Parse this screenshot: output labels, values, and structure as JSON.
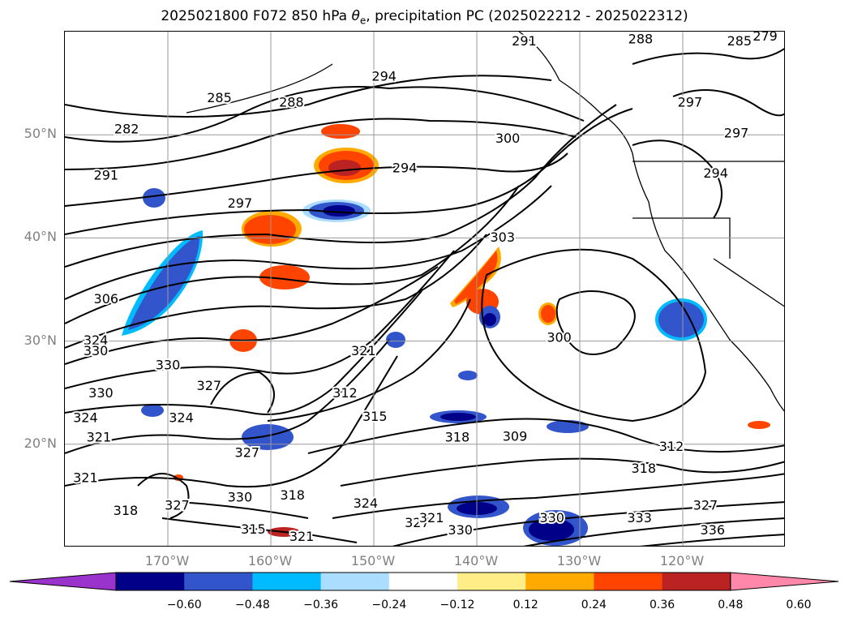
{
  "title": {
    "prefix": "2025021800 F072 850 hPa ",
    "theta": "θ",
    "theta_sub": "e",
    "suffix": ", precipitation PC (2025022212 - 2025022312)"
  },
  "axes": {
    "lat_labels": [
      "50°N",
      "40°N",
      "30°N",
      "20°N"
    ],
    "lon_labels": [
      "170°W",
      "160°W",
      "150°W",
      "140°W",
      "130°W",
      "120°W"
    ],
    "lat_values": [
      50,
      40,
      30,
      20
    ],
    "lon_values": [
      -170,
      -160,
      -150,
      -140,
      -130,
      -120
    ],
    "lon_range": [
      -180,
      -110
    ],
    "lat_range": [
      10,
      60
    ],
    "grid": true
  },
  "contour_labels": [
    {
      "text": "294",
      "lon": -149,
      "lat": 55.6
    },
    {
      "text": "288",
      "lon": -158,
      "lat": 53.1
    },
    {
      "text": "285",
      "lon": -165,
      "lat": 53.5
    },
    {
      "text": "282",
      "lon": -174,
      "lat": 50.5
    },
    {
      "text": "291",
      "lon": -176,
      "lat": 46.0
    },
    {
      "text": "297",
      "lon": -163,
      "lat": 43.3
    },
    {
      "text": "294",
      "lon": -147,
      "lat": 46.7
    },
    {
      "text": "300",
      "lon": -137,
      "lat": 49.6
    },
    {
      "text": "303",
      "lon": -137.5,
      "lat": 40.0
    },
    {
      "text": "300",
      "lon": -132,
      "lat": 30.3
    },
    {
      "text": "306",
      "lon": -176,
      "lat": 34.0
    },
    {
      "text": "324",
      "lon": -177,
      "lat": 30.0
    },
    {
      "text": "330",
      "lon": -177,
      "lat": 29.0
    },
    {
      "text": "330",
      "lon": -170,
      "lat": 27.6
    },
    {
      "text": "327",
      "lon": -166,
      "lat": 25.6
    },
    {
      "text": "330",
      "lon": -176.5,
      "lat": 24.9
    },
    {
      "text": "324",
      "lon": -178,
      "lat": 22.5
    },
    {
      "text": "324",
      "lon": -168.7,
      "lat": 22.5
    },
    {
      "text": "321",
      "lon": -176.7,
      "lat": 20.6
    },
    {
      "text": "321",
      "lon": -151,
      "lat": 29.0
    },
    {
      "text": "312",
      "lon": -152.8,
      "lat": 24.9
    },
    {
      "text": "315",
      "lon": -149.9,
      "lat": 22.6
    },
    {
      "text": "318",
      "lon": -141.9,
      "lat": 20.6
    },
    {
      "text": "309",
      "lon": -136.3,
      "lat": 20.7
    },
    {
      "text": "327",
      "lon": -162.3,
      "lat": 19.1
    },
    {
      "text": "321",
      "lon": -178,
      "lat": 16.7
    },
    {
      "text": "318",
      "lon": -174.1,
      "lat": 13.5
    },
    {
      "text": "327",
      "lon": -169.1,
      "lat": 14.0
    },
    {
      "text": "330",
      "lon": -163,
      "lat": 14.8
    },
    {
      "text": "318",
      "lon": -157.9,
      "lat": 15.0
    },
    {
      "text": "324",
      "lon": -150.8,
      "lat": 14.2
    },
    {
      "text": "327",
      "lon": -145.8,
      "lat": 12.3
    },
    {
      "text": "321",
      "lon": -144.4,
      "lat": 12.8
    },
    {
      "text": "330",
      "lon": -141.6,
      "lat": 11.6
    },
    {
      "text": "330",
      "lon": -132.7,
      "lat": 12.8
    },
    {
      "text": "315",
      "lon": -161.7,
      "lat": 11.7
    },
    {
      "text": "321",
      "lon": -157,
      "lat": 11.0
    },
    {
      "text": "333",
      "lon": -124.2,
      "lat": 12.8
    },
    {
      "text": "336",
      "lon": -117.1,
      "lat": 11.6
    },
    {
      "text": "327",
      "lon": -117.8,
      "lat": 14.0
    },
    {
      "text": "318",
      "lon": -123.8,
      "lat": 17.6
    },
    {
      "text": "312",
      "lon": -121.1,
      "lat": 19.7
    },
    {
      "text": "297",
      "lon": -119.3,
      "lat": 53.1
    },
    {
      "text": "297",
      "lon": -114.8,
      "lat": 50.1
    },
    {
      "text": "294",
      "lon": -116.8,
      "lat": 46.2
    },
    {
      "text": "288",
      "lon": -124.1,
      "lat": 59.2
    },
    {
      "text": "285",
      "lon": -114.5,
      "lat": 59.0
    },
    {
      "text": "279",
      "lon": -112,
      "lat": 59.5
    },
    {
      "text": "291",
      "lon": -135.4,
      "lat": 59.0
    }
  ],
  "colorbar": {
    "ticks": [
      "−0.60",
      "−0.48",
      "−0.36",
      "−0.24",
      "−0.12",
      "0.12",
      "0.24",
      "0.36",
      "0.48",
      "0.60"
    ],
    "colors": [
      "#9933cc",
      "#000088",
      "#3355cc",
      "#00bbff",
      "#aaddff",
      "#ffffff",
      "#ffee88",
      "#ffaa00",
      "#ff4400",
      "#bb2222",
      "#ff88aa"
    ]
  }
}
